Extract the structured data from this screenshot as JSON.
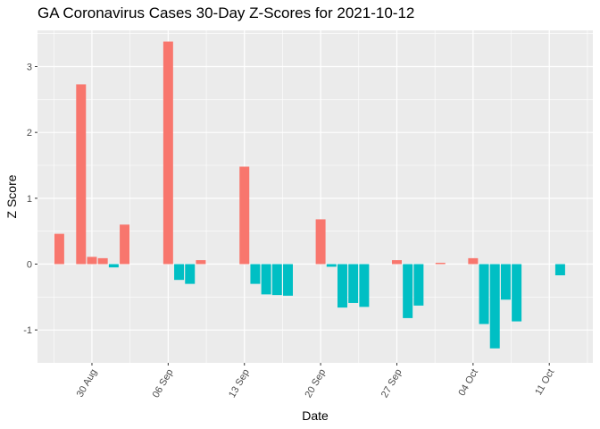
{
  "chart_data": {
    "type": "bar",
    "title": "GA Coronavirus Cases 30-Day Z-Scores for 2021-10-12",
    "xlabel": "Date",
    "ylabel": "Z Score",
    "ylim": [
      -1.5,
      3.55
    ],
    "y_ticks": [
      -1,
      0,
      1,
      2,
      3
    ],
    "x_range_days": [
      -5,
      46
    ],
    "x_ticks": [
      {
        "day": 0,
        "label": "30 Aug"
      },
      {
        "day": 7,
        "label": "06 Sep"
      },
      {
        "day": 14,
        "label": "13 Sep"
      },
      {
        "day": 21,
        "label": "20 Sep"
      },
      {
        "day": 28,
        "label": "27 Sep"
      },
      {
        "day": 35,
        "label": "04 Oct"
      },
      {
        "day": 42,
        "label": "11 Oct"
      }
    ],
    "fill_legend": {
      "positive": "#F8766D",
      "negative": "#00BFC4"
    },
    "grid": true,
    "series": [
      {
        "name": "Z Score",
        "points": [
          {
            "date": "2021-08-27",
            "day": -3,
            "value": 0.46
          },
          {
            "date": "2021-08-29",
            "day": -1,
            "value": 2.73
          },
          {
            "date": "2021-08-30",
            "day": 0,
            "value": 0.11
          },
          {
            "date": "2021-08-31",
            "day": 1,
            "value": 0.09
          },
          {
            "date": "2021-09-01",
            "day": 2,
            "value": -0.05
          },
          {
            "date": "2021-09-02",
            "day": 3,
            "value": 0.6
          },
          {
            "date": "2021-09-06",
            "day": 7,
            "value": 3.38
          },
          {
            "date": "2021-09-07",
            "day": 8,
            "value": -0.24
          },
          {
            "date": "2021-09-08",
            "day": 9,
            "value": -0.3
          },
          {
            "date": "2021-09-09",
            "day": 10,
            "value": 0.06
          },
          {
            "date": "2021-09-13",
            "day": 14,
            "value": 1.48
          },
          {
            "date": "2021-09-14",
            "day": 15,
            "value": -0.3
          },
          {
            "date": "2021-09-15",
            "day": 16,
            "value": -0.46
          },
          {
            "date": "2021-09-16",
            "day": 17,
            "value": -0.47
          },
          {
            "date": "2021-09-17",
            "day": 18,
            "value": -0.48
          },
          {
            "date": "2021-09-20",
            "day": 21,
            "value": 0.68
          },
          {
            "date": "2021-09-21",
            "day": 22,
            "value": -0.04
          },
          {
            "date": "2021-09-22",
            "day": 23,
            "value": -0.66
          },
          {
            "date": "2021-09-23",
            "day": 24,
            "value": -0.59
          },
          {
            "date": "2021-09-24",
            "day": 25,
            "value": -0.65
          },
          {
            "date": "2021-09-27",
            "day": 28,
            "value": 0.06
          },
          {
            "date": "2021-09-28",
            "day": 29,
            "value": -0.82
          },
          {
            "date": "2021-09-29",
            "day": 30,
            "value": -0.63
          },
          {
            "date": "2021-10-01",
            "day": 32,
            "value": 0.02
          },
          {
            "date": "2021-10-04",
            "day": 35,
            "value": 0.09
          },
          {
            "date": "2021-10-05",
            "day": 36,
            "value": -0.91
          },
          {
            "date": "2021-10-06",
            "day": 37,
            "value": -1.28
          },
          {
            "date": "2021-10-07",
            "day": 38,
            "value": -0.54
          },
          {
            "date": "2021-10-08",
            "day": 39,
            "value": -0.87
          },
          {
            "date": "2021-10-12",
            "day": 43,
            "value": -0.17
          }
        ]
      }
    ]
  }
}
